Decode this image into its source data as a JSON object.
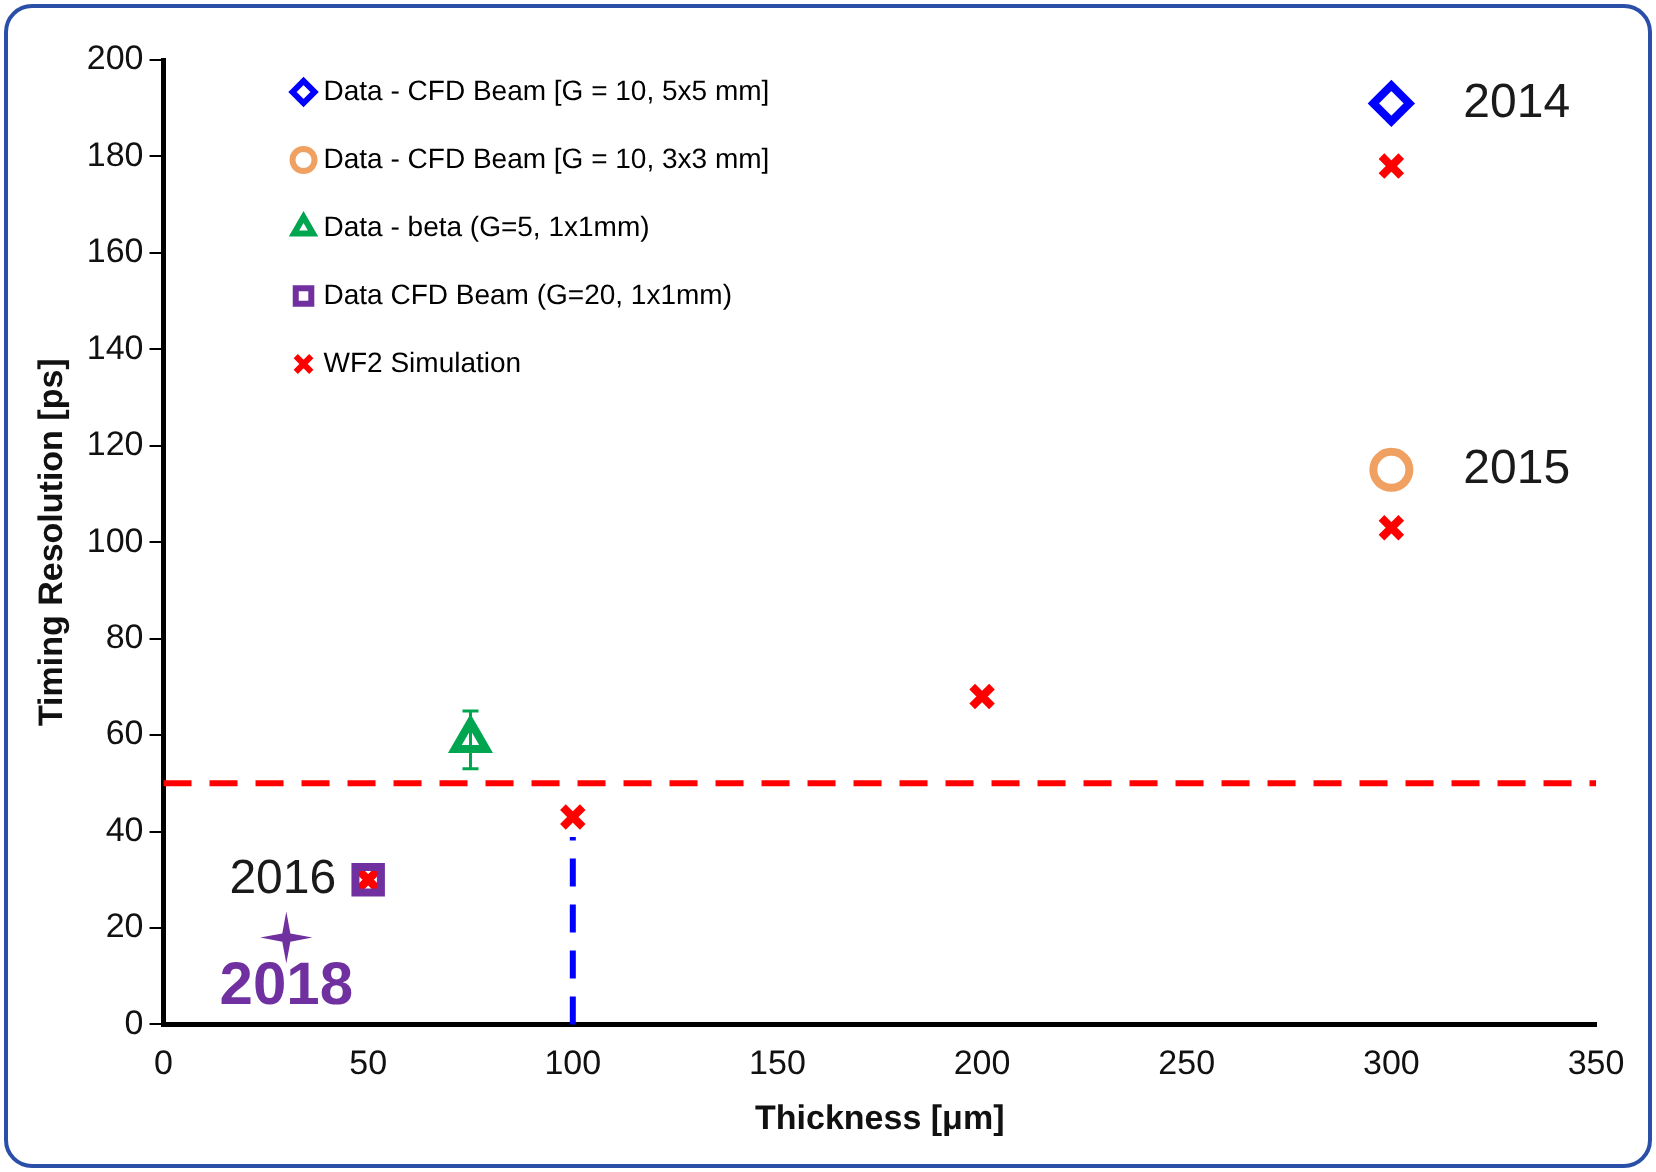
{
  "chart_data": {
    "type": "scatter",
    "xlabel": "Thickness [μm]",
    "ylabel": "Timing Resolution [ps]",
    "xlim": [
      0,
      350
    ],
    "xticks": [
      0,
      50,
      100,
      150,
      200,
      250,
      300,
      350
    ],
    "ylim": [
      0,
      200
    ],
    "yticks": [
      0,
      20,
      40,
      60,
      80,
      100,
      120,
      140,
      160,
      180,
      200
    ],
    "grid": false,
    "legend": "top left",
    "series": [
      {
        "name": "Data - CFD Beam [G = 10, 5x5 mm]",
        "color": "#0000ff",
        "marker": "diamond",
        "x": [
          300
        ],
        "values": [
          191
        ]
      },
      {
        "name": "Data - CFD Beam [G = 10, 3x3 mm]",
        "color": "#f0a060",
        "marker": "circle",
        "x": [
          300
        ],
        "values": [
          115
        ]
      },
      {
        "name": "Data - beta (G=5, 1x1mm)",
        "color": "#00a550",
        "marker": "triangle",
        "x": [
          75
        ],
        "values": [
          59
        ],
        "errors": [
          6
        ]
      },
      {
        "name": "Data CFD Beam (G=20, 1x1mm)",
        "color": "#7030a0",
        "marker": "square",
        "x": [
          50
        ],
        "values": [
          30
        ]
      },
      {
        "name": "WF2 Simulation",
        "color": "#ff0000",
        "marker": "cross",
        "x": [
          50,
          100,
          200,
          300,
          300
        ],
        "values": [
          30,
          43,
          68,
          103,
          178
        ]
      },
      {
        "color": "#7030a0",
        "marker": "star",
        "x": [
          30
        ],
        "values": [
          18
        ]
      }
    ],
    "ref_lines": [
      {
        "axis": "y",
        "value": 50,
        "color": "#ff0000",
        "line_style": "dashed"
      },
      {
        "axis": "x",
        "value": 100,
        "color": "#0000ff",
        "line_style": "dashed"
      }
    ],
    "annotations": [
      {
        "text": "2014",
        "x": 300,
        "y": 191
      },
      {
        "text": "2015",
        "x": 300,
        "y": 115
      },
      {
        "text": "2016",
        "x": 50,
        "y": 30
      },
      {
        "text": "2018",
        "x": 30,
        "y": 18
      }
    ]
  }
}
